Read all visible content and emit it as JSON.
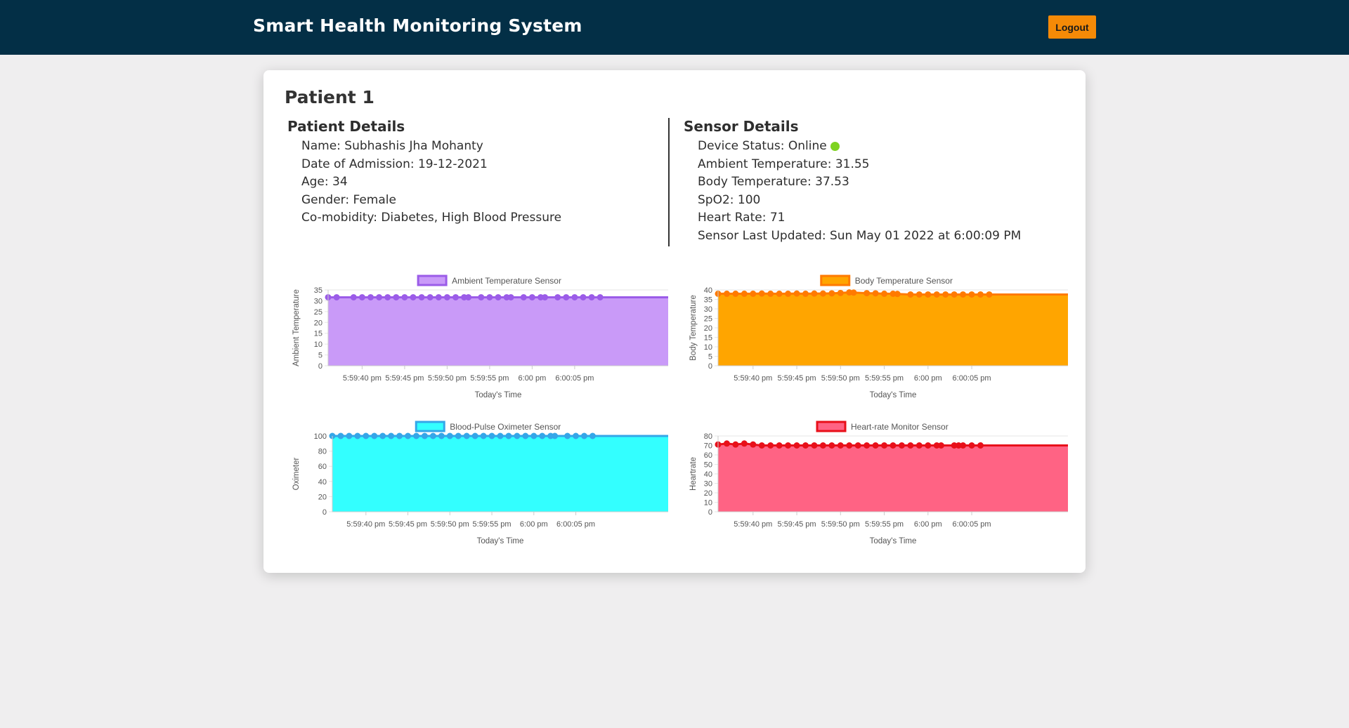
{
  "header": {
    "title": "Smart Health Monitoring System",
    "logout_label": "Logout"
  },
  "patient": {
    "title": "Patient 1",
    "details_heading": "Patient Details",
    "name": "Name: Subhashis Jha Mohanty",
    "admission": "Date of Admission: 19-12-2021",
    "age": "Age: 34",
    "gender": "Gender: Female",
    "comorbidity": "Co-mobidity: Diabetes, High Blood Pressure"
  },
  "sensor": {
    "heading": "Sensor Details",
    "device_status": "Device Status: Online",
    "ambient": "Ambient Temperature: 31.55",
    "body": "Body Temperature: 37.53",
    "spo2": "SpO2: 100",
    "heart": "Heart Rate: 71",
    "last_updated": "Sensor Last Updated: Sun May 01 2022 at 6:00:09 PM",
    "status_color": "#7ed321"
  },
  "chart_data": [
    {
      "type": "area",
      "title": "",
      "legend": "Ambient Temperature Sensor",
      "xlabel": "Today's Time",
      "ylabel": "Ambient Temperature",
      "ylim": [
        0,
        35
      ],
      "yticks": [
        0,
        5,
        10,
        15,
        20,
        25,
        30,
        35
      ],
      "xlim_seconds": [
        6,
        46
      ],
      "xticks": [
        {
          "label": "5:59:40 pm",
          "t": 10
        },
        {
          "label": "5:59:45 pm",
          "t": 15
        },
        {
          "label": "5:59:50 pm",
          "t": 20
        },
        {
          "label": "5:59:55 pm",
          "t": 25
        },
        {
          "label": "6:00 pm",
          "t": 30
        },
        {
          "label": "6:00:05 pm",
          "t": 35
        }
      ],
      "t": [
        6,
        7,
        9,
        10,
        11,
        12,
        13,
        14,
        15,
        16,
        17,
        18,
        19,
        20,
        21,
        22,
        22.5,
        24,
        25,
        26,
        27,
        27.5,
        29,
        30,
        31,
        31.5,
        33,
        34,
        35,
        36,
        37,
        38
      ],
      "values": [
        31.6,
        31.6,
        31.6,
        31.6,
        31.6,
        31.6,
        31.6,
        31.6,
        31.6,
        31.6,
        31.6,
        31.6,
        31.6,
        31.6,
        31.6,
        31.6,
        31.6,
        31.6,
        31.6,
        31.6,
        31.6,
        31.6,
        31.6,
        31.6,
        31.6,
        31.6,
        31.6,
        31.6,
        31.6,
        31.6,
        31.6,
        31.6
      ],
      "fill": "#c99af8",
      "line": "#9b5ce8"
    },
    {
      "type": "area",
      "title": "",
      "legend": "Body Temperature Sensor",
      "xlabel": "Today's Time",
      "ylabel": "Body Temperature",
      "ylim": [
        0,
        40
      ],
      "yticks": [
        0,
        5,
        10,
        15,
        20,
        25,
        30,
        35,
        40
      ],
      "xlim_seconds": [
        6,
        46
      ],
      "xticks": [
        {
          "label": "5:59:40 pm",
          "t": 10
        },
        {
          "label": "5:59:45 pm",
          "t": 15
        },
        {
          "label": "5:59:50 pm",
          "t": 20
        },
        {
          "label": "5:59:55 pm",
          "t": 25
        },
        {
          "label": "6:00 pm",
          "t": 30
        },
        {
          "label": "6:00:05 pm",
          "t": 35
        }
      ],
      "t": [
        6,
        7,
        8,
        9,
        10,
        11,
        12,
        13,
        14,
        15,
        16,
        17,
        18,
        19,
        20,
        21,
        21.5,
        23,
        24,
        25,
        26,
        26.5,
        28,
        29,
        30,
        31,
        32,
        33,
        34,
        35,
        36,
        37
      ],
      "values": [
        38,
        38,
        38,
        38,
        38,
        38.1,
        38,
        38,
        38,
        38.1,
        38,
        38.1,
        38.1,
        38.2,
        38.4,
        38.7,
        38.6,
        38.3,
        38.2,
        38,
        38,
        37.9,
        37.6,
        37.6,
        37.6,
        37.6,
        37.6,
        37.6,
        37.6,
        37.6,
        37.6,
        37.6
      ],
      "fill": "#ffa500",
      "line": "#ff7a00"
    },
    {
      "type": "area",
      "title": "",
      "legend": "Blood-Pulse Oximeter Sensor",
      "xlabel": "Today's Time",
      "ylabel": "Oximeter",
      "ylim": [
        0,
        100
      ],
      "yticks": [
        0,
        20,
        40,
        60,
        80,
        100
      ],
      "xlim_seconds": [
        6,
        46
      ],
      "xticks": [
        {
          "label": "5:59:40 pm",
          "t": 10
        },
        {
          "label": "5:59:45 pm",
          "t": 15
        },
        {
          "label": "5:59:50 pm",
          "t": 20
        },
        {
          "label": "5:59:55 pm",
          "t": 25
        },
        {
          "label": "6:00 pm",
          "t": 30
        },
        {
          "label": "6:00:05 pm",
          "t": 35
        }
      ],
      "t": [
        6,
        7,
        8,
        9,
        10,
        11,
        12,
        13,
        14,
        15,
        16,
        17,
        18,
        19,
        20,
        21,
        22,
        23,
        24,
        25,
        26,
        27,
        28,
        29,
        30,
        31,
        32,
        32.5,
        34,
        35,
        36,
        37
      ],
      "values": [
        100,
        100,
        100,
        100,
        100,
        100,
        100,
        100,
        100,
        100,
        100,
        100,
        100,
        100,
        100,
        100,
        100,
        100,
        100,
        100,
        100,
        100,
        100,
        100,
        100,
        100,
        100,
        100,
        100,
        100,
        100,
        100
      ],
      "fill": "#33ffff",
      "line": "#35a6e8"
    },
    {
      "type": "area",
      "title": "",
      "legend": "Heart-rate Monitor Sensor",
      "xlabel": "Today's Time",
      "ylabel": "Heartrate",
      "ylim": [
        0,
        80
      ],
      "yticks": [
        0,
        10,
        20,
        30,
        40,
        50,
        60,
        70,
        80
      ],
      "xlim_seconds": [
        6,
        46
      ],
      "xticks": [
        {
          "label": "5:59:40 pm",
          "t": 10
        },
        {
          "label": "5:59:45 pm",
          "t": 15
        },
        {
          "label": "5:59:50 pm",
          "t": 20
        },
        {
          "label": "5:59:55 pm",
          "t": 25
        },
        {
          "label": "6:00 pm",
          "t": 30
        },
        {
          "label": "6:00:05 pm",
          "t": 35
        }
      ],
      "t": [
        6,
        7,
        8,
        9,
        10,
        11,
        12,
        13,
        14,
        15,
        16,
        17,
        18,
        19,
        20,
        21,
        22,
        23,
        24,
        25,
        26,
        27,
        28,
        29,
        30,
        31,
        31.5,
        33,
        33.5,
        34,
        35,
        36
      ],
      "values": [
        71,
        72,
        71,
        72,
        71,
        70,
        70,
        70,
        70,
        70,
        70,
        70,
        70,
        70,
        70,
        70,
        70,
        70,
        70,
        70,
        70,
        70,
        70,
        70,
        70,
        70,
        70,
        70,
        70,
        70,
        70,
        70
      ],
      "fill": "#ff6384",
      "line": "#e8101a"
    }
  ]
}
